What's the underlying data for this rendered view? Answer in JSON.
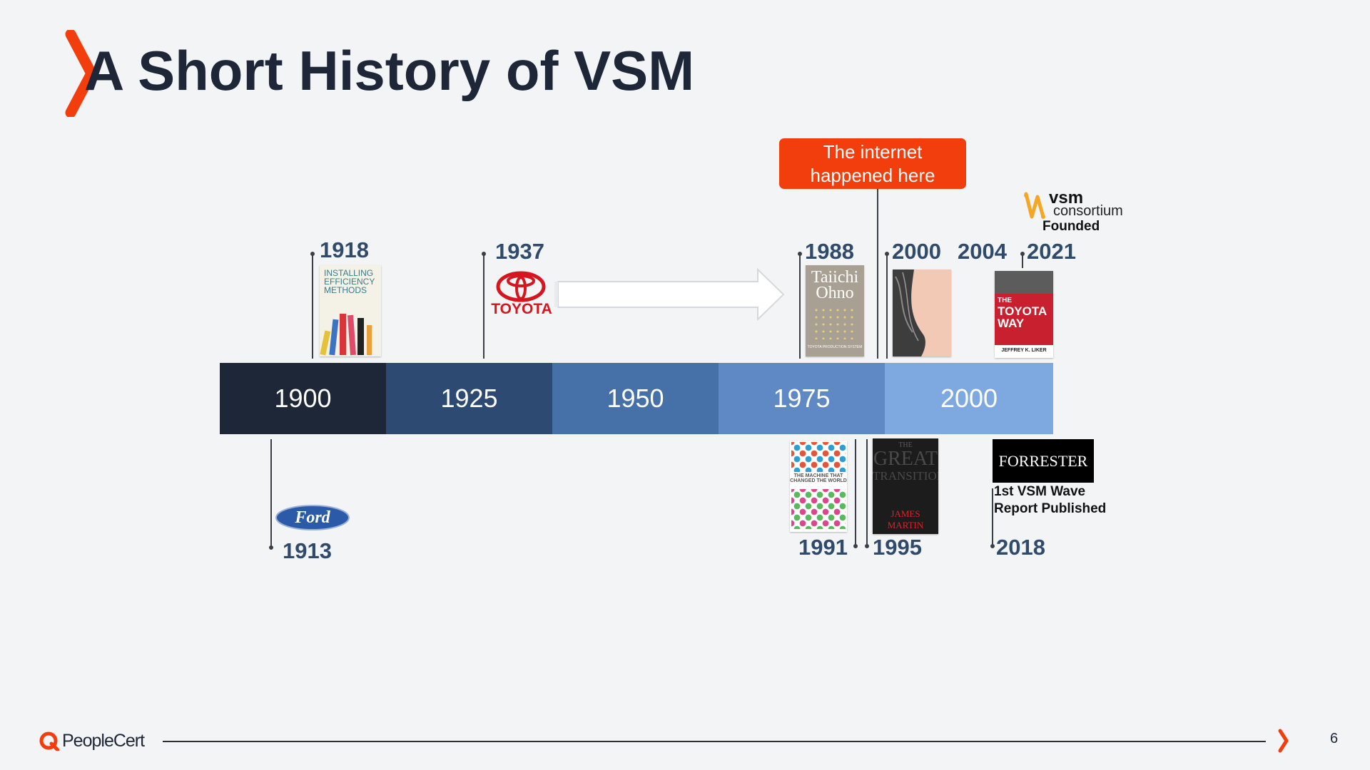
{
  "slide": {
    "title": "A Short History of VSM",
    "page_number": "6",
    "callout": "The internet happened here"
  },
  "timeline": {
    "eras": [
      "1900",
      "1925",
      "1950",
      "1975",
      "2000"
    ],
    "era_colors": [
      "#1e2738",
      "#2c4a72",
      "#4670a8",
      "#5f89c4",
      "#7ea8e0"
    ]
  },
  "events_top": {
    "y1918": "1918",
    "y1937": "1937",
    "y1988": "1988",
    "y2000": "2000",
    "y2004": "2004",
    "y2021": "2021"
  },
  "events_bottom": {
    "y1913": "1913",
    "y1991": "1991",
    "y1995": "1995",
    "y2018": "2018"
  },
  "captions": {
    "vsm_founded": "Founded",
    "forrester_line1": "1st VSM Wave",
    "forrester_line2": "Report Published"
  },
  "logos": {
    "toyota": "TOYOTA",
    "ford": "Ford",
    "forrester": "FORRESTER",
    "vsm_main": "vsm",
    "vsm_sub": "consortium",
    "peoplecert": "PeopleCert"
  },
  "books": {
    "efficiency": {
      "l1": "INSTALLING",
      "l2": "EFFICIENCY",
      "l3": "METHODS"
    },
    "ohno": {
      "l1": "Taiichi",
      "l2": "Ohno",
      "sub": "TOYOTA PRODUCTION SYSTEM"
    },
    "toyota_way": {
      "l1": "THE",
      "l2": "TOYOTA",
      "l3": "WAY",
      "author": "JEFFREY K. LIKER"
    },
    "machine": {
      "l1": "THE MACHINE THAT",
      "l2": "CHANGED THE WORLD"
    },
    "transition": {
      "l1": "THE",
      "l2": "GREAT",
      "l3": "TRANSITION",
      "author": "JAMES MARTIN"
    }
  },
  "colors": {
    "accent": "#f23d0c",
    "year_text": "#2f4a6b",
    "title_text": "#1e2738"
  }
}
